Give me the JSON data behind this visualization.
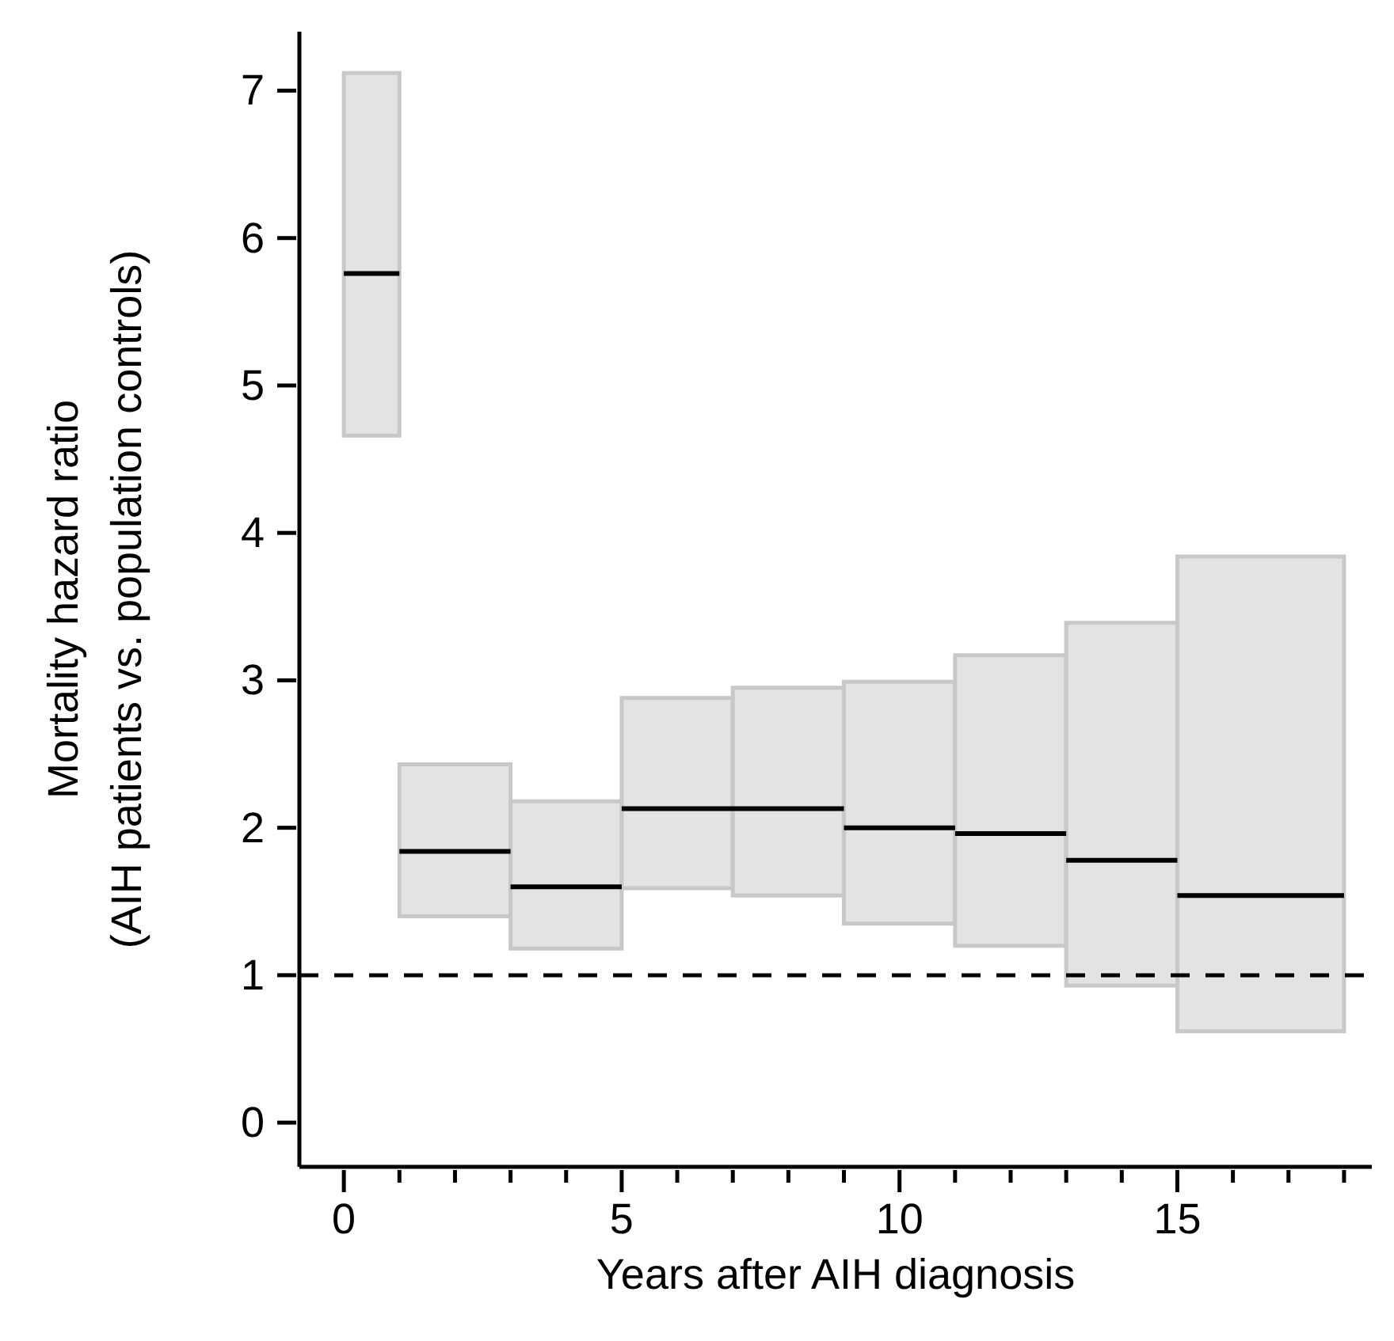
{
  "chart_data": {
    "type": "histogram",
    "xlabel": "Years after AIH diagnosis",
    "ylabel": "Mortality hazard ratio\n(AIH patients vs. population controls)",
    "bins": [
      0,
      1,
      3,
      5,
      7,
      9,
      11,
      13,
      15,
      18
    ],
    "series": [
      {
        "color": "#e3e3e3",
        "base": [
          4.66,
          1.4,
          1.18,
          1.59,
          1.54,
          1.35,
          1.2,
          0.93,
          0.62
        ],
        "values": [
          2.46,
          1.03,
          1.0,
          1.29,
          1.41,
          1.64,
          1.97,
          2.46,
          3.22
        ]
      },
      {
        "type": "line",
        "color": "#000000",
        "x": [
          0,
          1,
          1,
          3,
          3,
          5,
          5,
          7,
          7,
          9,
          9,
          11,
          11,
          13,
          13,
          15,
          15,
          18
        ],
        "values": [
          5.76,
          5.76,
          1.84,
          1.84,
          1.6,
          1.6,
          2.13,
          2.13,
          2.13,
          2.13,
          2.0,
          2.0,
          1.96,
          1.96,
          1.78,
          1.78,
          1.54,
          1.54
        ]
      }
    ],
    "xlim": [
      -0.8,
      18.5
    ],
    "xticks": [
      0,
      {
        "value": 1,
        "label": null
      },
      {
        "value": 2,
        "label": null
      },
      {
        "value": 3,
        "label": null
      },
      {
        "value": 4,
        "label": null
      },
      5,
      {
        "value": 6,
        "label": null
      },
      {
        "value": 7,
        "label": null
      },
      {
        "value": 8,
        "label": null
      },
      {
        "value": 9,
        "label": null
      },
      10,
      {
        "value": 11,
        "label": null
      },
      {
        "value": 12,
        "label": null
      },
      {
        "value": 13,
        "label": null
      },
      {
        "value": 14,
        "label": null
      },
      15,
      {
        "value": 16,
        "label": null
      },
      {
        "value": 17,
        "label": null
      },
      {
        "value": 18,
        "label": null
      }
    ],
    "ylim": [
      -0.3,
      7.4
    ],
    "yticks": [
      0,
      1,
      2,
      3,
      4,
      5,
      6,
      7
    ],
    "ref_lines": [
      {
        "axis": "y",
        "value": 1,
        "color": "#000000",
        "line_style": "dashed"
      }
    ],
    "grid": false,
    "legend": false
  }
}
